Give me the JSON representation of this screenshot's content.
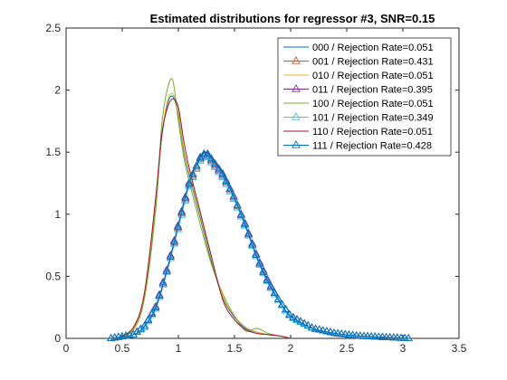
{
  "chart_data": {
    "type": "line",
    "title": "Estimated distributions for regressor #3,  SNR=0.15",
    "xlabel": "",
    "ylabel": "",
    "xlim": [
      0,
      3.5
    ],
    "ylim": [
      0,
      2.5
    ],
    "x_ticks": [
      "0",
      "0.5",
      "1",
      "1.5",
      "2",
      "2.5",
      "3",
      "3.5"
    ],
    "y_ticks": [
      "0",
      "0.5",
      "1",
      "1.5",
      "2",
      "2.5"
    ],
    "grid": false,
    "legend_position": "top-right",
    "series": [
      {
        "name": "000 / Rejection Rate=0.051",
        "color": "#0072BD",
        "marker": "none",
        "x": [
          0.45,
          0.6,
          0.7,
          0.8,
          0.85,
          0.9,
          0.95,
          1.0,
          1.05,
          1.1,
          1.2,
          1.3,
          1.4,
          1.5,
          1.6,
          1.7,
          1.8,
          1.9,
          2.0
        ],
        "y": [
          0.0,
          0.08,
          0.35,
          1.1,
          1.6,
          1.88,
          1.95,
          1.8,
          1.5,
          1.3,
          0.95,
          0.6,
          0.32,
          0.17,
          0.08,
          0.05,
          0.03,
          0.02,
          0.0
        ]
      },
      {
        "name": "001 / Rejection Rate=0.431",
        "color": "#D95319",
        "marker": "triangle",
        "x": [
          0.4,
          0.6,
          0.7,
          0.8,
          0.9,
          1.0,
          1.1,
          1.2,
          1.25,
          1.3,
          1.4,
          1.5,
          1.6,
          1.7,
          1.8,
          1.9,
          2.0,
          2.2,
          2.4,
          2.6,
          2.8,
          3.05
        ],
        "y": [
          0.0,
          0.03,
          0.1,
          0.25,
          0.55,
          0.9,
          1.25,
          1.45,
          1.48,
          1.42,
          1.3,
          1.12,
          0.9,
          0.65,
          0.45,
          0.3,
          0.18,
          0.08,
          0.04,
          0.02,
          0.01,
          0.0
        ]
      },
      {
        "name": "010 / Rejection Rate=0.051",
        "color": "#EDB120",
        "marker": "none",
        "x": [
          0.45,
          0.6,
          0.7,
          0.8,
          0.85,
          0.9,
          0.95,
          1.0,
          1.05,
          1.1,
          1.2,
          1.3,
          1.4,
          1.5,
          1.6,
          1.7,
          1.8,
          1.9,
          2.0
        ],
        "y": [
          0.0,
          0.08,
          0.36,
          1.12,
          1.62,
          1.9,
          1.97,
          1.82,
          1.52,
          1.32,
          0.97,
          0.62,
          0.33,
          0.18,
          0.09,
          0.05,
          0.03,
          0.02,
          0.0
        ]
      },
      {
        "name": "011 / Rejection Rate=0.395",
        "color": "#7E2F8E",
        "marker": "triangle",
        "x": [
          0.4,
          0.6,
          0.7,
          0.8,
          0.9,
          1.0,
          1.1,
          1.2,
          1.25,
          1.3,
          1.4,
          1.5,
          1.6,
          1.7,
          1.8,
          1.9,
          2.0,
          2.2,
          2.4,
          2.6,
          2.8,
          3.05
        ],
        "y": [
          0.0,
          0.03,
          0.1,
          0.26,
          0.56,
          0.92,
          1.27,
          1.46,
          1.49,
          1.43,
          1.31,
          1.13,
          0.91,
          0.66,
          0.46,
          0.3,
          0.18,
          0.08,
          0.04,
          0.02,
          0.01,
          0.0
        ]
      },
      {
        "name": "100 / Rejection Rate=0.051",
        "color": "#77AC30",
        "marker": "none",
        "x": [
          0.45,
          0.6,
          0.7,
          0.8,
          0.85,
          0.9,
          0.95,
          1.0,
          1.05,
          1.1,
          1.2,
          1.3,
          1.4,
          1.5,
          1.6,
          1.7,
          1.8,
          1.9,
          2.0
        ],
        "y": [
          0.0,
          0.07,
          0.33,
          1.05,
          1.7,
          2.0,
          2.08,
          1.75,
          1.45,
          1.25,
          0.9,
          0.58,
          0.35,
          0.18,
          0.06,
          0.08,
          0.04,
          0.02,
          0.0
        ]
      },
      {
        "name": "101 / Rejection Rate=0.349",
        "color": "#4DBEEE",
        "marker": "triangle",
        "x": [
          0.4,
          0.6,
          0.7,
          0.8,
          0.9,
          1.0,
          1.1,
          1.2,
          1.25,
          1.3,
          1.4,
          1.5,
          1.6,
          1.7,
          1.8,
          1.9,
          2.0,
          2.2,
          2.4,
          2.6,
          2.8,
          3.05
        ],
        "y": [
          0.0,
          0.03,
          0.09,
          0.24,
          0.54,
          0.89,
          1.24,
          1.44,
          1.47,
          1.41,
          1.29,
          1.11,
          0.89,
          0.64,
          0.44,
          0.29,
          0.17,
          0.08,
          0.04,
          0.02,
          0.01,
          0.0
        ]
      },
      {
        "name": "110 / Rejection Rate=0.051",
        "color": "#A2142F",
        "marker": "none",
        "x": [
          0.45,
          0.6,
          0.7,
          0.8,
          0.85,
          0.9,
          0.95,
          1.0,
          1.05,
          1.1,
          1.2,
          1.3,
          1.4,
          1.5,
          1.6,
          1.7,
          1.8,
          1.9,
          2.0
        ],
        "y": [
          0.0,
          0.09,
          0.38,
          1.15,
          1.63,
          1.85,
          1.93,
          1.86,
          1.58,
          1.36,
          1.0,
          0.64,
          0.3,
          0.15,
          0.07,
          0.04,
          0.03,
          0.02,
          0.0
        ]
      },
      {
        "name": "111 / Rejection Rate=0.428",
        "color": "#0072BD",
        "marker": "triangle",
        "x": [
          0.4,
          0.6,
          0.7,
          0.8,
          0.9,
          1.0,
          1.1,
          1.2,
          1.25,
          1.3,
          1.4,
          1.5,
          1.6,
          1.7,
          1.8,
          1.9,
          2.0,
          2.2,
          2.4,
          2.6,
          2.8,
          3.05
        ],
        "y": [
          0.0,
          0.03,
          0.1,
          0.25,
          0.55,
          0.91,
          1.26,
          1.47,
          1.5,
          1.44,
          1.32,
          1.13,
          0.9,
          0.65,
          0.45,
          0.3,
          0.18,
          0.08,
          0.04,
          0.02,
          0.01,
          0.0
        ]
      }
    ]
  }
}
